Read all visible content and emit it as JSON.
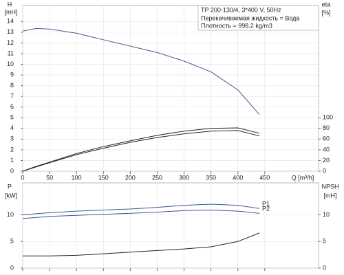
{
  "chart_data": [
    {
      "type": "line",
      "ylabel": "H",
      "yunit": "[mH]",
      "y2label": "eta",
      "y2unit": "[%]",
      "xlabel": "Q [m³/h]",
      "annotations": [
        "TP 200-130/4, 3*400 V, 50Hz",
        "Перекачиваемая жидкость = Вода",
        "Плотность = 998.2 kg/m3"
      ],
      "x": [
        0,
        25,
        50,
        100,
        150,
        200,
        250,
        300,
        350,
        400,
        440
      ],
      "series": [
        {
          "color": "#4a5a8c",
          "values": [
            13.1,
            13.35,
            13.3,
            12.9,
            12.3,
            11.7,
            11.1,
            10.3,
            9.3,
            7.6,
            5.3
          ]
        },
        {
          "color": "#222222",
          "axis": "y2",
          "values": [
            0,
            9,
            17,
            33,
            46,
            57,
            67,
            75,
            80,
            81,
            71
          ]
        },
        {
          "color": "#222222",
          "axis": "y2",
          "values": [
            0,
            8,
            16,
            31,
            43,
            54,
            63,
            70,
            75,
            76,
            66
          ]
        }
      ],
      "xlim": [
        0,
        550
      ],
      "xticks": [
        0,
        50,
        100,
        150,
        200,
        250,
        300,
        350,
        400,
        450
      ],
      "ylim": [
        0,
        15.5
      ],
      "yticks": [
        0,
        1,
        2,
        3,
        4,
        5,
        6,
        7,
        8,
        9,
        10,
        11,
        12,
        13,
        14
      ],
      "y2lim": [
        0,
        310
      ],
      "y2ticks": [
        0,
        20,
        40,
        60,
        80,
        100
      ],
      "grid": true,
      "xtick_labels": true
    },
    {
      "type": "line",
      "ylabel": "P",
      "yunit": "[kW]",
      "y2label": "NPSH",
      "y2unit": "[mH]",
      "x": [
        0,
        25,
        50,
        100,
        150,
        200,
        250,
        300,
        350,
        400,
        440
      ],
      "series": [
        {
          "name": "P1",
          "color": "#3a5a8c",
          "values": [
            10.0,
            10.2,
            10.4,
            10.7,
            10.9,
            11.1,
            11.4,
            11.8,
            12.0,
            11.8,
            11.2
          ]
        },
        {
          "name": "P2",
          "color": "#3a5a8c",
          "values": [
            9.3,
            9.5,
            9.7,
            9.9,
            10.1,
            10.3,
            10.5,
            10.8,
            10.9,
            10.7,
            10.3
          ]
        },
        {
          "color": "#222222",
          "axis": "y2",
          "values": [
            2.3,
            2.3,
            2.3,
            2.4,
            2.7,
            3.0,
            3.3,
            3.6,
            4.0,
            5.0,
            6.6
          ]
        }
      ],
      "xlim": [
        0,
        550
      ],
      "xticks": [
        0,
        50,
        100,
        150,
        200,
        250,
        300,
        350,
        400,
        450
      ],
      "ylim": [
        0,
        16
      ],
      "yticks": [
        0,
        5,
        10
      ],
      "y2lim": [
        0,
        16
      ],
      "y2ticks": [
        0,
        5,
        10
      ],
      "grid": true,
      "xtick_labels": false
    }
  ]
}
